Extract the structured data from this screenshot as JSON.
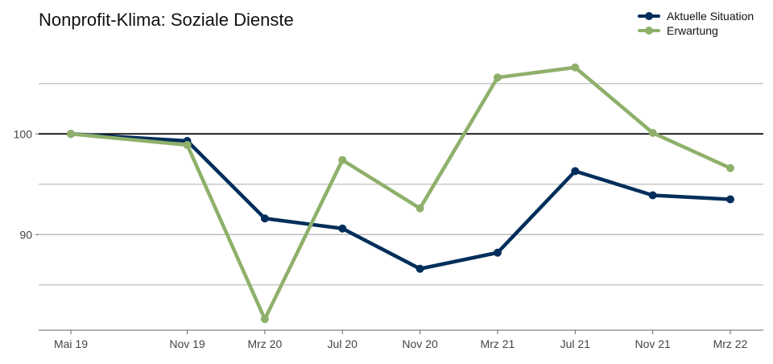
{
  "chart_data": {
    "type": "line",
    "title": "Nonprofit-Klima: Soziale Dienste",
    "x": [
      "Mai 19",
      "Nov 19",
      "Mrz 20",
      "Jul 20",
      "Nov 20",
      "Mrz 21",
      "Jul 21",
      "Nov 21",
      "Mrz 22"
    ],
    "x_dates": [
      "2019-05",
      "2019-11",
      "2020-03",
      "2020-07",
      "2020-11",
      "2021-03",
      "2021-07",
      "2021-11",
      "2022-03"
    ],
    "series": [
      {
        "name": "Aktuelle Situation",
        "color": "#002E5A",
        "values": [
          100,
          99.3,
          91.6,
          90.6,
          86.6,
          88.2,
          96.3,
          93.9,
          93.5
        ]
      },
      {
        "name": "Erwartung",
        "color": "#8FB06A",
        "values": [
          100,
          98.9,
          81.6,
          97.4,
          92.6,
          105.6,
          106.6,
          100.1,
          96.6
        ]
      }
    ],
    "yticks": [
      90,
      100
    ],
    "ylim": [
      80.5,
      108.5
    ],
    "reference_line": 100,
    "grid": true,
    "legend_position": "top-right",
    "xlabel": "",
    "ylabel": ""
  }
}
